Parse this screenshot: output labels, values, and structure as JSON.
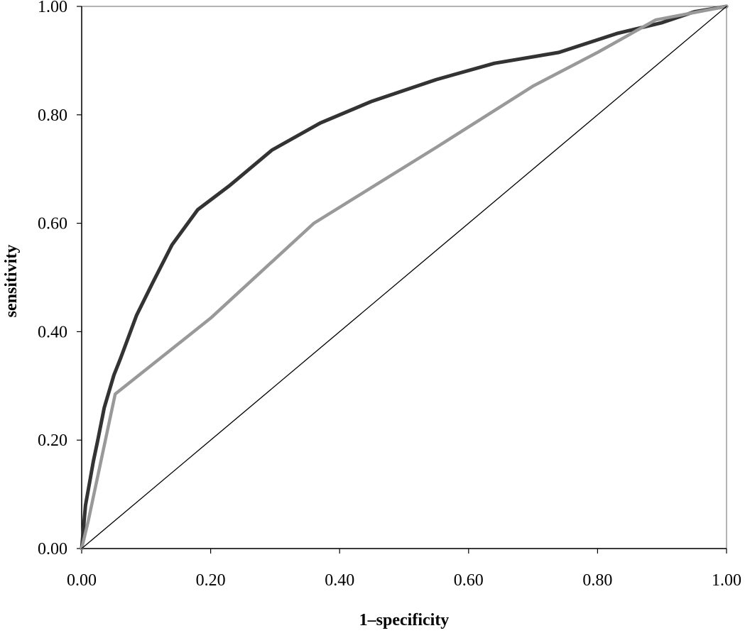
{
  "chart_data": {
    "type": "line",
    "title": "",
    "xlabel": "1–specificity",
    "ylabel": "sensitivity",
    "xlim": [
      0,
      1
    ],
    "ylim": [
      0,
      1
    ],
    "x_ticks": [
      "0.00",
      "0.20",
      "0.40",
      "0.60",
      "0.80",
      "1.00"
    ],
    "y_ticks": [
      "0.00",
      "0.20",
      "0.40",
      "0.60",
      "0.80",
      "1.00"
    ],
    "grid": false,
    "legend": "none",
    "series": [
      {
        "color": "#333333",
        "points": [
          [
            0,
            0
          ],
          [
            0.003,
            0.04
          ],
          [
            0.006,
            0.08
          ],
          [
            0.012,
            0.12
          ],
          [
            0.018,
            0.16
          ],
          [
            0.025,
            0.2
          ],
          [
            0.035,
            0.26
          ],
          [
            0.05,
            0.32
          ],
          [
            0.06,
            0.35
          ],
          [
            0.085,
            0.43
          ],
          [
            0.11,
            0.49
          ],
          [
            0.14,
            0.56
          ],
          [
            0.18,
            0.625
          ],
          [
            0.23,
            0.67
          ],
          [
            0.295,
            0.735
          ],
          [
            0.37,
            0.785
          ],
          [
            0.45,
            0.825
          ],
          [
            0.55,
            0.865
          ],
          [
            0.64,
            0.895
          ],
          [
            0.74,
            0.915
          ],
          [
            0.83,
            0.95
          ],
          [
            0.9,
            0.97
          ],
          [
            0.95,
            0.99
          ],
          [
            1,
            1
          ]
        ]
      },
      {
        "color": "#999999",
        "points": [
          [
            0,
            0
          ],
          [
            0.01,
            0.05
          ],
          [
            0.052,
            0.285
          ],
          [
            0.2,
            0.425
          ],
          [
            0.36,
            0.6
          ],
          [
            0.55,
            0.74
          ],
          [
            0.7,
            0.853
          ],
          [
            0.8,
            0.915
          ],
          [
            0.89,
            0.975
          ],
          [
            1,
            1
          ]
        ]
      },
      {
        "color": "#000000",
        "points": [
          [
            0,
            0
          ],
          [
            1,
            1
          ]
        ]
      }
    ]
  }
}
